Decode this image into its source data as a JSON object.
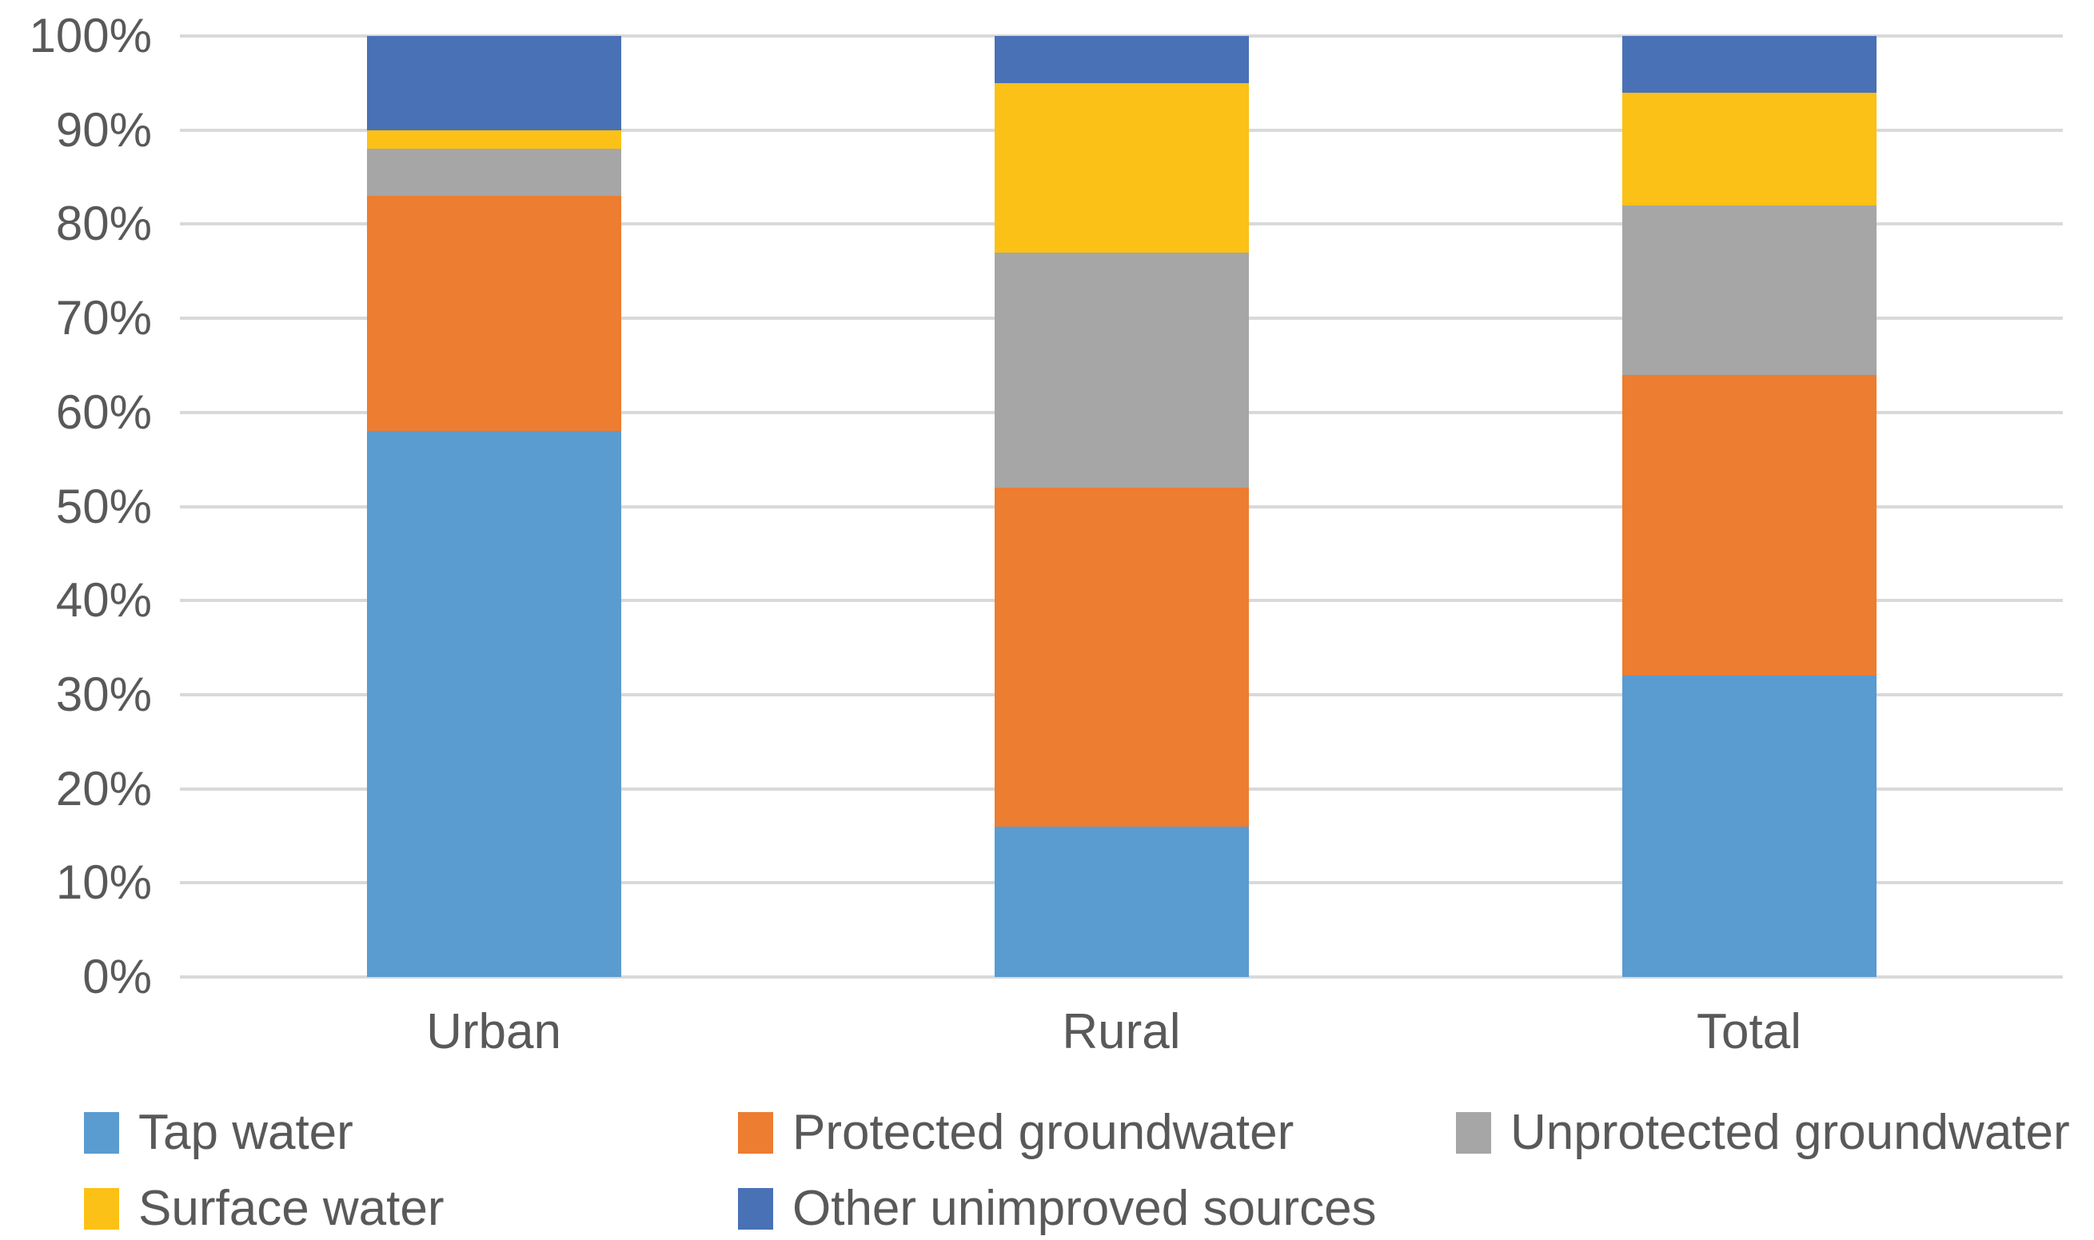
{
  "chart_data": {
    "type": "bar",
    "subtype": "stacked-100-percent",
    "title": "",
    "xlabel": "",
    "ylabel": "",
    "categories": [
      "Urban",
      "Rural",
      "Total"
    ],
    "series": [
      {
        "name": "Tap water",
        "color": "#5A9BD0",
        "values": [
          58,
          16,
          32
        ]
      },
      {
        "name": "Protected groundwater",
        "color": "#EC7D31",
        "values": [
          25,
          36,
          32
        ]
      },
      {
        "name": "Unprotected groundwater",
        "color": "#A6A6A6",
        "values": [
          5,
          25,
          18
        ]
      },
      {
        "name": "Surface water",
        "color": "#FBC116",
        "values": [
          2,
          18,
          12
        ]
      },
      {
        "name": "Other unimproved sources",
        "color": "#4971B5",
        "values": [
          10,
          5,
          6
        ]
      }
    ],
    "ylim": [
      0,
      100
    ],
    "yticks": [
      "0%",
      "10%",
      "20%",
      "30%",
      "40%",
      "50%",
      "60%",
      "70%",
      "80%",
      "90%",
      "100%"
    ],
    "grid": true,
    "gridline_color": "#D9D9D9",
    "text_color": "#595959",
    "legend_position": "bottom",
    "legend_rows": [
      [
        "Tap water",
        "Protected groundwater",
        "Unprotected groundwater"
      ],
      [
        "Surface water",
        "Other unimproved sources"
      ]
    ]
  }
}
